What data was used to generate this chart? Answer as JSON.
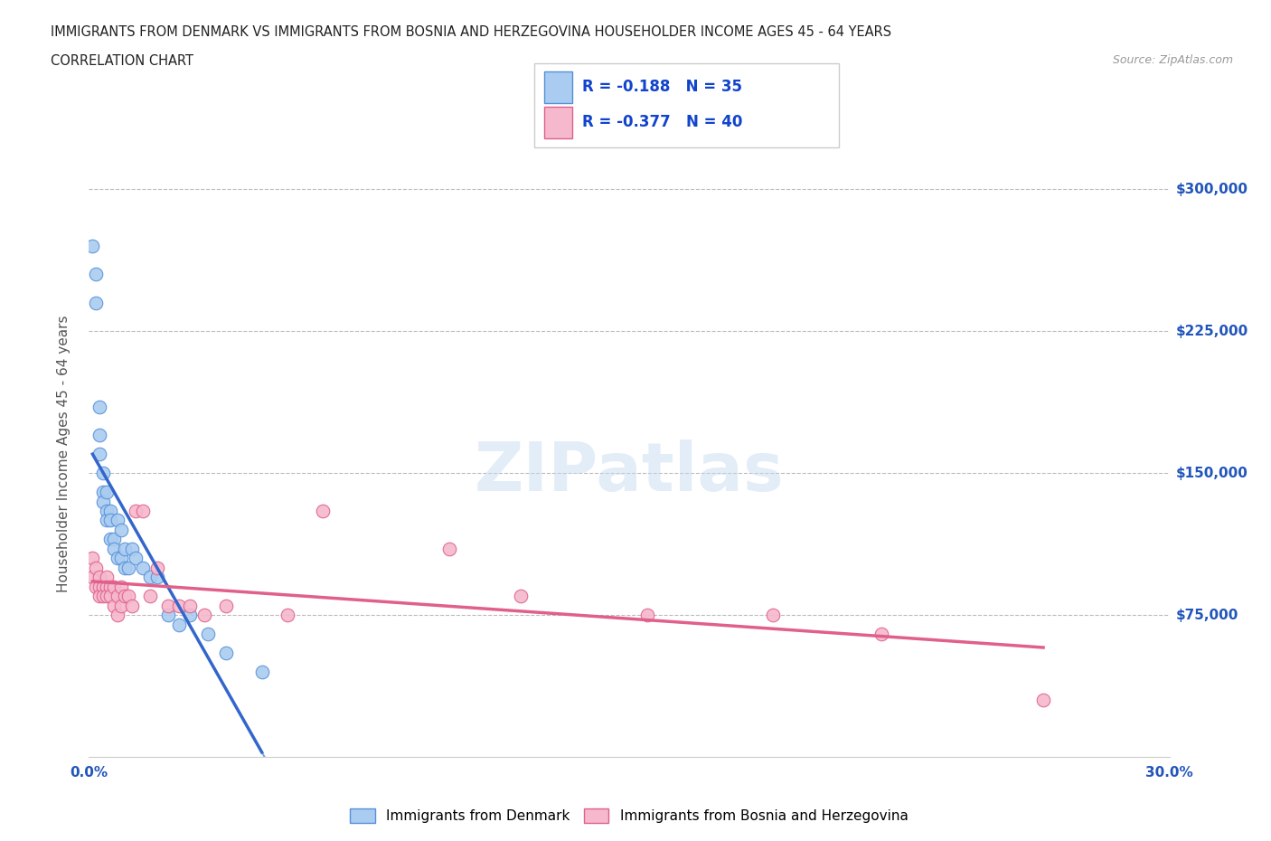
{
  "title_line1": "IMMIGRANTS FROM DENMARK VS IMMIGRANTS FROM BOSNIA AND HERZEGOVINA HOUSEHOLDER INCOME AGES 45 - 64 YEARS",
  "title_line2": "CORRELATION CHART",
  "source_text": "Source: ZipAtlas.com",
  "ylabel": "Householder Income Ages 45 - 64 years",
  "xlim": [
    0.0,
    0.3
  ],
  "ylim": [
    0,
    320000
  ],
  "watermark_text": "ZIPatlas",
  "denmark_color": "#aaccf0",
  "denmark_edge_color": "#5590d8",
  "denmark_line_color": "#3366cc",
  "bosnia_color": "#f5b8cc",
  "bosnia_edge_color": "#e0608a",
  "bosnia_line_color": "#e0608a",
  "denmark_R": -0.188,
  "denmark_N": 35,
  "bosnia_R": -0.377,
  "bosnia_N": 40,
  "denmark_scatter_x": [
    0.001,
    0.002,
    0.002,
    0.003,
    0.003,
    0.003,
    0.004,
    0.004,
    0.004,
    0.005,
    0.005,
    0.005,
    0.006,
    0.006,
    0.006,
    0.007,
    0.007,
    0.008,
    0.008,
    0.009,
    0.009,
    0.01,
    0.01,
    0.011,
    0.012,
    0.013,
    0.015,
    0.017,
    0.019,
    0.022,
    0.025,
    0.028,
    0.033,
    0.038,
    0.048
  ],
  "denmark_scatter_y": [
    270000,
    255000,
    240000,
    185000,
    170000,
    160000,
    150000,
    140000,
    135000,
    140000,
    130000,
    125000,
    130000,
    125000,
    115000,
    115000,
    110000,
    125000,
    105000,
    120000,
    105000,
    110000,
    100000,
    100000,
    110000,
    105000,
    100000,
    95000,
    95000,
    75000,
    70000,
    75000,
    65000,
    55000,
    45000
  ],
  "bosnia_scatter_x": [
    0.001,
    0.001,
    0.002,
    0.002,
    0.003,
    0.003,
    0.003,
    0.004,
    0.004,
    0.005,
    0.005,
    0.005,
    0.006,
    0.006,
    0.007,
    0.007,
    0.008,
    0.008,
    0.009,
    0.009,
    0.01,
    0.011,
    0.012,
    0.013,
    0.015,
    0.017,
    0.019,
    0.022,
    0.025,
    0.028,
    0.032,
    0.038,
    0.055,
    0.065,
    0.1,
    0.12,
    0.155,
    0.19,
    0.22,
    0.265
  ],
  "bosnia_scatter_y": [
    105000,
    95000,
    100000,
    90000,
    95000,
    90000,
    85000,
    90000,
    85000,
    95000,
    90000,
    85000,
    90000,
    85000,
    90000,
    80000,
    85000,
    75000,
    90000,
    80000,
    85000,
    85000,
    80000,
    130000,
    130000,
    85000,
    100000,
    80000,
    80000,
    80000,
    75000,
    80000,
    75000,
    130000,
    110000,
    85000,
    75000,
    75000,
    65000,
    30000
  ]
}
